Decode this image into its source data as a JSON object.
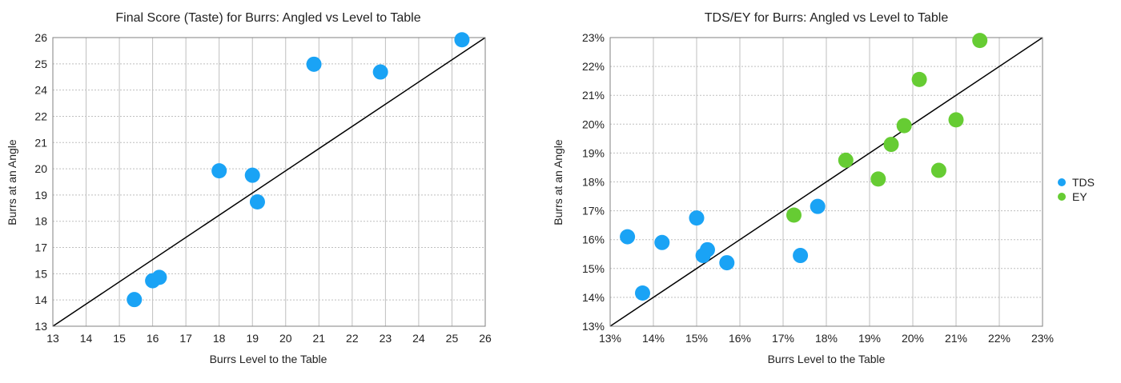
{
  "chart_data": [
    {
      "type": "scatter",
      "title": "Final Score (Taste) for Burrs: Angled vs Level to Table",
      "xlabel": "Burrs Level to the Table",
      "ylabel": "Burrs at an Angle",
      "xlim": [
        13,
        26
      ],
      "ylim": [
        13,
        26
      ],
      "xticks": [
        "13",
        "14",
        "15",
        "16",
        "17",
        "18",
        "19",
        "20",
        "21",
        "22",
        "23",
        "24",
        "25",
        "26"
      ],
      "yticks": [
        "13",
        "14",
        "15",
        "17",
        "18",
        "19",
        "20",
        "21",
        "22",
        "24",
        "25",
        "26"
      ],
      "grid": true,
      "reference_line": "y = x",
      "series": [
        {
          "color": "#1aa3f5",
          "points": [
            [
              15.45,
              14.2
            ],
            [
              16.0,
              15.05
            ],
            [
              16.2,
              15.2
            ],
            [
              18.0,
              20.0
            ],
            [
              19.0,
              19.8
            ],
            [
              19.15,
              18.6
            ],
            [
              20.85,
              24.8
            ],
            [
              22.85,
              24.45
            ],
            [
              25.3,
              25.9
            ]
          ]
        }
      ]
    },
    {
      "type": "scatter",
      "title": "TDS/EY for Burrs: Angled vs Level to Table",
      "xlabel": "Burrs Level to the Table",
      "ylabel": "Burrs at an Angle",
      "xlim": [
        13,
        23
      ],
      "ylim": [
        13,
        23
      ],
      "xticks": [
        "13%",
        "14%",
        "15%",
        "16%",
        "17%",
        "18%",
        "19%",
        "20%",
        "21%",
        "22%",
        "23%"
      ],
      "yticks": [
        "13%",
        "14%",
        "15%",
        "16%",
        "17%",
        "18%",
        "19%",
        "20%",
        "21%",
        "22%",
        "23%"
      ],
      "grid": true,
      "reference_line": "y = x",
      "legend_position": "right",
      "series": [
        {
          "name": "TDS",
          "color": "#1aa3f5",
          "points": [
            [
              13.4,
              16.1
            ],
            [
              13.75,
              14.15
            ],
            [
              14.2,
              15.9
            ],
            [
              15.0,
              16.75
            ],
            [
              15.15,
              15.45
            ],
            [
              15.25,
              15.65
            ],
            [
              15.7,
              15.2
            ],
            [
              17.4,
              15.45
            ],
            [
              17.8,
              17.15
            ]
          ]
        },
        {
          "name": "EY",
          "color": "#66cc33",
          "points": [
            [
              17.25,
              16.85
            ],
            [
              18.45,
              18.75
            ],
            [
              19.2,
              18.1
            ],
            [
              19.5,
              19.3
            ],
            [
              19.8,
              19.95
            ],
            [
              20.15,
              21.55
            ],
            [
              20.6,
              18.4
            ],
            [
              21.0,
              20.15
            ],
            [
              21.55,
              22.9
            ]
          ]
        }
      ]
    }
  ]
}
